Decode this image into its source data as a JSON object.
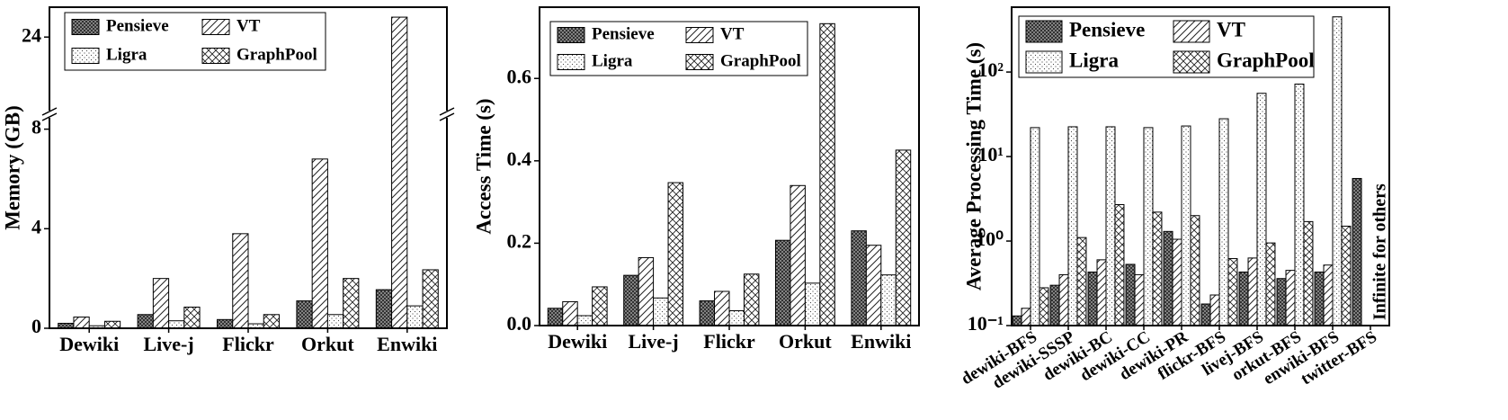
{
  "chart_data": [
    {
      "type": "bar",
      "ylabel": "Memory (GB)",
      "categories": [
        "Dewiki",
        "Live-j",
        "Flickr",
        "Orkut",
        "Enwiki"
      ],
      "series": [
        {
          "name": "Pensieve",
          "color": "#000000",
          "hatch": "dense-crosshatch",
          "values": [
            0.2,
            0.55,
            0.35,
            1.1,
            1.55
          ]
        },
        {
          "name": "VT",
          "color": "#000000",
          "hatch": "diagonal",
          "values": [
            0.45,
            2.0,
            3.8,
            6.8,
            24.8
          ]
        },
        {
          "name": "Ligra",
          "color": "#000000",
          "hatch": "dots",
          "values": [
            0.1,
            0.3,
            0.18,
            0.55,
            0.9
          ]
        },
        {
          "name": "GraphPool",
          "color": "#000000",
          "hatch": "crosshatch",
          "values": [
            0.28,
            0.85,
            0.55,
            2.0,
            2.35
          ]
        }
      ],
      "ylim": [
        0,
        25.2
      ],
      "ylim_break": [
        8.6,
        20.9
      ],
      "yticks": [
        0,
        4,
        8,
        24
      ],
      "legend": "upper left"
    },
    {
      "type": "bar",
      "ylabel": "Access Time (s)",
      "categories": [
        "Dewiki",
        "Live-j",
        "Flickr",
        "Orkut",
        "Enwiki"
      ],
      "series": [
        {
          "name": "Pensieve",
          "color": "#000000",
          "hatch": "dense-crosshatch",
          "values": [
            0.042,
            0.122,
            0.06,
            0.207,
            0.23
          ]
        },
        {
          "name": "VT",
          "color": "#000000",
          "hatch": "diagonal",
          "values": [
            0.058,
            0.165,
            0.083,
            0.34,
            0.195
          ]
        },
        {
          "name": "Ligra",
          "color": "#000000",
          "hatch": "dots",
          "values": [
            0.024,
            0.067,
            0.036,
            0.103,
            0.123
          ]
        },
        {
          "name": "GraphPool",
          "color": "#000000",
          "hatch": "crosshatch",
          "values": [
            0.094,
            0.347,
            0.125,
            0.733,
            0.426
          ]
        }
      ],
      "ylim": [
        0,
        0.773
      ],
      "yticks": [
        {
          "value": 0,
          "label": "0.0"
        },
        0.2,
        0.4,
        0.6
      ],
      "legend": "upper left"
    },
    {
      "type": "bar",
      "ylabel": "Average Processing Time (s)",
      "log_scale": true,
      "annotation": "Infinite for others",
      "categories": [
        "dewiki-BFS",
        "dewiki-SSSP",
        "dewiki-BC",
        "dewiki-CC",
        "dewiki-PR",
        "flickr-BFS",
        "livej-BFS",
        "orkut-BFS",
        "enwiki-BFS",
        "twitter-BFS"
      ],
      "series": [
        {
          "name": "Pensieve",
          "color": "#000000",
          "hatch": "dense-crosshatch",
          "values": [
            0.13,
            0.3,
            0.43,
            0.53,
            1.3,
            0.18,
            0.43,
            0.36,
            0.43,
            5.5
          ]
        },
        {
          "name": "VT",
          "color": "#000000",
          "hatch": "diagonal",
          "values": [
            0.16,
            0.4,
            0.6,
            0.4,
            1.05,
            0.23,
            0.63,
            0.45,
            0.52,
            null
          ]
        },
        {
          "name": "Ligra",
          "color": "#000000",
          "hatch": "dots",
          "values": [
            22,
            22.5,
            22.5,
            22,
            23,
            28,
            56,
            72,
            450,
            null
          ]
        },
        {
          "name": "GraphPool",
          "color": "#000000",
          "hatch": "crosshatch",
          "values": [
            0.28,
            1.1,
            2.7,
            2.2,
            2.0,
            0.62,
            0.95,
            1.7,
            1.5,
            null
          ]
        }
      ],
      "ylim": [
        0.1,
        585
      ],
      "yticks": [
        {
          "value": 0.1,
          "label": "10⁻¹"
        },
        {
          "value": 1,
          "label": "10⁰"
        },
        {
          "value": 10,
          "label": "10¹"
        },
        {
          "value": 100,
          "label": "10²"
        }
      ],
      "legend": "upper left"
    }
  ]
}
